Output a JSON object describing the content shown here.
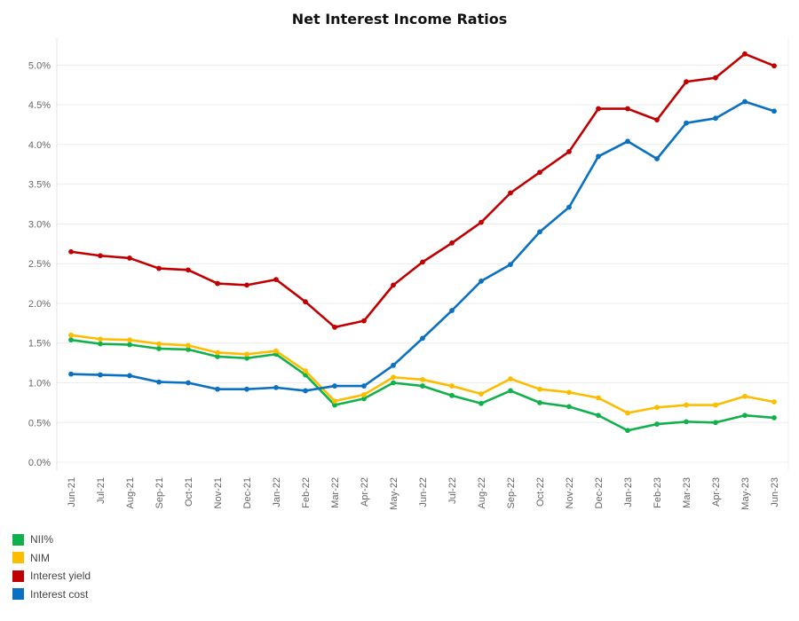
{
  "chart_data": {
    "type": "line",
    "title": "Net Interest Income Ratios",
    "xlabel": "",
    "ylabel": "",
    "categories": [
      "Jun-21",
      "Jul-21",
      "Aug-21",
      "Sep-21",
      "Oct-21",
      "Nov-21",
      "Dec-21",
      "Jan-22",
      "Feb-22",
      "Mar-22",
      "Apr-22",
      "May-22",
      "Jun-22",
      "Jul-22",
      "Aug-22",
      "Sep-22",
      "Oct-22",
      "Nov-22",
      "Dec-22",
      "Jan-23",
      "Feb-23",
      "Mar-23",
      "Apr-23",
      "May-23",
      "Jun-23"
    ],
    "y_ticks": [
      {
        "value": 0.0,
        "label": "0.0%"
      },
      {
        "value": 0.5,
        "label": "0.5%"
      },
      {
        "value": 1.0,
        "label": "1.0%"
      },
      {
        "value": 1.5,
        "label": "1.5%"
      },
      {
        "value": 2.0,
        "label": "2.0%"
      },
      {
        "value": 2.5,
        "label": "2.5%"
      },
      {
        "value": 3.0,
        "label": "3.0%"
      },
      {
        "value": 3.5,
        "label": "3.5%"
      },
      {
        "value": 4.0,
        "label": "4.0%"
      },
      {
        "value": 4.5,
        "label": "4.5%"
      },
      {
        "value": 5.0,
        "label": "5.0%"
      }
    ],
    "ylim": [
      -0.1,
      5.35
    ],
    "grid": true,
    "legend_position": "bottom-left",
    "series": [
      {
        "name": "NII%",
        "color": "#12b04c",
        "values": [
          1.54,
          1.49,
          1.48,
          1.43,
          1.42,
          1.33,
          1.31,
          1.36,
          1.1,
          0.72,
          0.8,
          1.0,
          0.96,
          0.84,
          0.74,
          0.9,
          0.75,
          0.7,
          0.59,
          0.4,
          0.48,
          0.51,
          0.5,
          0.59,
          0.56
        ]
      },
      {
        "name": "NIM",
        "color": "#fbbd00",
        "values": [
          1.6,
          1.55,
          1.54,
          1.49,
          1.47,
          1.38,
          1.36,
          1.4,
          1.15,
          0.77,
          0.85,
          1.07,
          1.04,
          0.96,
          0.86,
          1.05,
          0.92,
          0.88,
          0.81,
          0.62,
          0.69,
          0.72,
          0.72,
          0.83,
          0.76
        ]
      },
      {
        "name": "Interest yield",
        "color": "#c00000",
        "values": [
          2.65,
          2.6,
          2.57,
          2.44,
          2.42,
          2.25,
          2.23,
          2.3,
          2.02,
          1.7,
          1.78,
          2.23,
          2.52,
          2.76,
          3.02,
          3.39,
          3.65,
          3.91,
          4.45,
          4.45,
          4.31,
          4.79,
          4.84,
          5.14,
          4.99
        ]
      },
      {
        "name": "Interest cost",
        "color": "#0a70c0",
        "values": [
          1.11,
          1.1,
          1.09,
          1.01,
          1.0,
          0.92,
          0.92,
          0.94,
          0.9,
          0.96,
          0.96,
          1.22,
          1.56,
          1.91,
          2.28,
          2.49,
          2.9,
          3.21,
          3.85,
          4.04,
          3.82,
          4.27,
          4.33,
          4.54,
          4.42
        ]
      }
    ]
  }
}
